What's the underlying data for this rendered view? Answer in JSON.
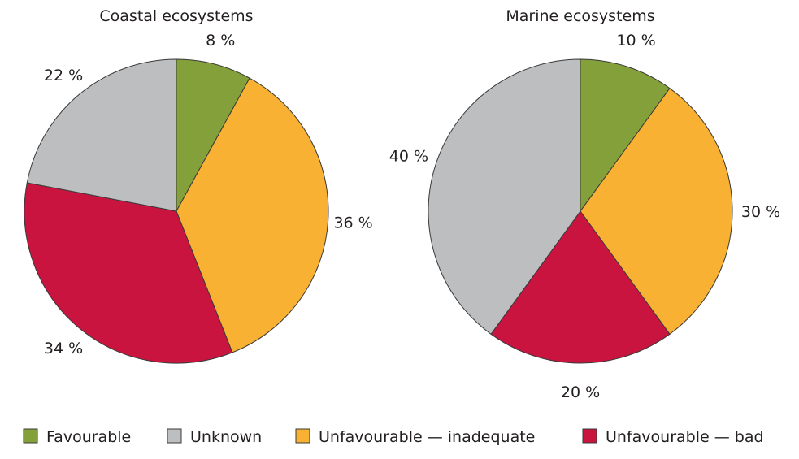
{
  "chart_data": [
    {
      "type": "pie",
      "title": "Coastal ecosystems",
      "start_angle_deg": 0,
      "direction": "clockwise",
      "slices": [
        {
          "label": "Favourable",
          "value": 8,
          "value_label": "8 %",
          "color": "#84a03a"
        },
        {
          "label": "Unfavourable — inadequate",
          "value": 36,
          "value_label": "36 %",
          "color": "#f8b133"
        },
        {
          "label": "Unfavourable — bad",
          "value": 34,
          "value_label": "34 %",
          "color": "#c8143f"
        },
        {
          "label": "Unknown",
          "value": 22,
          "value_label": "22 %",
          "color": "#bcbec0"
        }
      ]
    },
    {
      "type": "pie",
      "title": "Marine ecosystems",
      "start_angle_deg": 0,
      "direction": "clockwise",
      "slices": [
        {
          "label": "Favourable",
          "value": 10,
          "value_label": "10 %",
          "color": "#84a03a"
        },
        {
          "label": "Unfavourable — inadequate",
          "value": 30,
          "value_label": "30 %",
          "color": "#f8b133"
        },
        {
          "label": "Unfavourable — bad",
          "value": 20,
          "value_label": "20 %",
          "color": "#c8143f"
        },
        {
          "label": "Unknown",
          "value": 40,
          "value_label": "40 %",
          "color": "#bcbec0"
        }
      ]
    }
  ],
  "legend": {
    "placement": "bottom",
    "items": [
      {
        "label": "Favourable",
        "color": "#84a03a"
      },
      {
        "label": "Unknown",
        "color": "#bcbec0"
      },
      {
        "label": "Unfavourable — inadequate",
        "color": "#f8b133"
      },
      {
        "label": "Unfavourable — bad",
        "color": "#c8143f"
      }
    ]
  }
}
